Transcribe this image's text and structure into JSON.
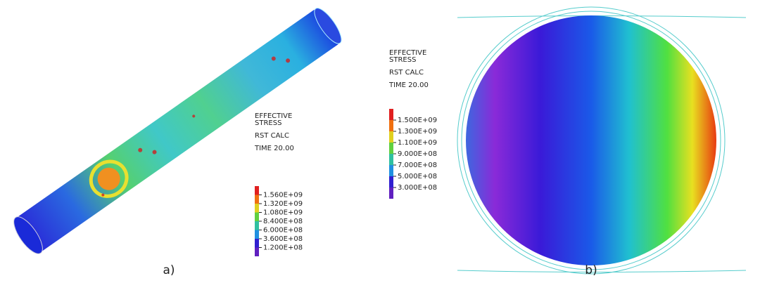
{
  "panels": [
    {
      "label": "a)",
      "legend": {
        "title_lines": [
          "EFFECTIVE",
          "STRESS"
        ],
        "calc": "RST CALC",
        "time": "TIME 20.00",
        "ticks": [
          "1.560E+09",
          "1.320E+09",
          "1.080E+09",
          "8.400E+08",
          "6.000E+08",
          "3.600E+08",
          "1.200E+08"
        ]
      }
    },
    {
      "label": "b)",
      "legend": {
        "title_lines": [
          "EFFECTIVE",
          "STRESS"
        ],
        "calc": "RST CALC",
        "time": "TIME 20.00",
        "ticks": [
          "1.500E+09",
          "1.300E+09",
          "1.100E+09",
          "9.000E+08",
          "7.000E+08",
          "5.000E+08",
          "3.000E+08"
        ]
      }
    }
  ]
}
